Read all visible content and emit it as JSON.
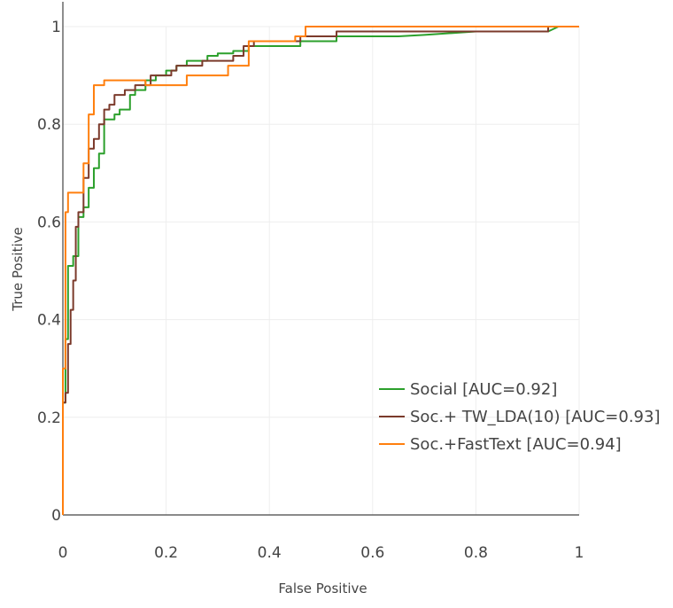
{
  "chart_data": {
    "type": "line",
    "title": "",
    "xlabel": "False Positive",
    "ylabel": "True Positive",
    "xlim": [
      0,
      1
    ],
    "ylim": [
      0,
      1
    ],
    "xticks": [
      0,
      0.2,
      0.4,
      0.6,
      0.8,
      1
    ],
    "yticks": [
      0,
      0.2,
      0.4,
      0.6,
      0.8,
      1
    ],
    "xtick_labels": [
      "0",
      "0.2",
      "0.4",
      "0.6",
      "0.8",
      "1"
    ],
    "ytick_labels": [
      "0",
      "0.2",
      "0.4",
      "0.6",
      "0.8",
      "1"
    ],
    "grid": true,
    "legend_position": "bottom-right",
    "series": [
      {
        "name": "Social [AUC=0.92]",
        "color": "#2ca02c",
        "x": [
          0,
          0,
          0.005,
          0.005,
          0.01,
          0.01,
          0.02,
          0.02,
          0.03,
          0.03,
          0.04,
          0.04,
          0.05,
          0.05,
          0.06,
          0.06,
          0.07,
          0.07,
          0.08,
          0.08,
          0.1,
          0.1,
          0.11,
          0.11,
          0.13,
          0.13,
          0.14,
          0.14,
          0.16,
          0.16,
          0.18,
          0.18,
          0.2,
          0.2,
          0.22,
          0.22,
          0.24,
          0.24,
          0.28,
          0.28,
          0.3,
          0.3,
          0.33,
          0.33,
          0.36,
          0.36,
          0.4,
          0.4,
          0.46,
          0.46,
          0.53,
          0.53,
          0.6,
          0.6,
          0.65,
          0.65,
          0.7,
          0.8,
          0.94,
          0.96,
          1
        ],
        "y": [
          0,
          0.23,
          0.23,
          0.36,
          0.36,
          0.51,
          0.51,
          0.53,
          0.53,
          0.61,
          0.61,
          0.63,
          0.63,
          0.67,
          0.67,
          0.71,
          0.71,
          0.74,
          0.74,
          0.81,
          0.81,
          0.82,
          0.82,
          0.83,
          0.83,
          0.86,
          0.86,
          0.87,
          0.87,
          0.89,
          0.89,
          0.9,
          0.9,
          0.91,
          0.91,
          0.92,
          0.92,
          0.93,
          0.93,
          0.94,
          0.94,
          0.945,
          0.945,
          0.95,
          0.95,
          0.96,
          0.96,
          0.96,
          0.96,
          0.97,
          0.97,
          0.98,
          0.98,
          0.98,
          0.98,
          0.98,
          0.983,
          0.99,
          0.99,
          1,
          1
        ]
      },
      {
        "name": "Soc.+ TW_LDA(10) [AUC=0.93]",
        "color": "#7b3a2b",
        "x": [
          0,
          0,
          0.005,
          0.005,
          0.01,
          0.01,
          0.015,
          0.015,
          0.02,
          0.02,
          0.025,
          0.025,
          0.03,
          0.03,
          0.04,
          0.04,
          0.05,
          0.05,
          0.06,
          0.06,
          0.07,
          0.07,
          0.08,
          0.08,
          0.09,
          0.09,
          0.1,
          0.1,
          0.12,
          0.12,
          0.14,
          0.14,
          0.17,
          0.17,
          0.21,
          0.21,
          0.22,
          0.22,
          0.27,
          0.27,
          0.33,
          0.33,
          0.35,
          0.35,
          0.37,
          0.37,
          0.46,
          0.46,
          0.53,
          0.53,
          0.94,
          0.94,
          1
        ],
        "y": [
          0,
          0.23,
          0.23,
          0.25,
          0.25,
          0.35,
          0.35,
          0.42,
          0.42,
          0.48,
          0.48,
          0.59,
          0.59,
          0.62,
          0.62,
          0.69,
          0.69,
          0.75,
          0.75,
          0.77,
          0.77,
          0.8,
          0.8,
          0.83,
          0.83,
          0.84,
          0.84,
          0.86,
          0.86,
          0.87,
          0.87,
          0.88,
          0.88,
          0.9,
          0.9,
          0.91,
          0.91,
          0.92,
          0.92,
          0.93,
          0.93,
          0.94,
          0.94,
          0.96,
          0.96,
          0.97,
          0.97,
          0.98,
          0.98,
          0.99,
          0.99,
          1,
          1
        ]
      },
      {
        "name": "Soc.+FastText [AUC=0.94]",
        "color": "#ff7f0e",
        "x": [
          0,
          0,
          0.005,
          0.005,
          0.01,
          0.01,
          0.02,
          0.02,
          0.04,
          0.04,
          0.05,
          0.05,
          0.06,
          0.06,
          0.08,
          0.08,
          0.14,
          0.14,
          0.16,
          0.16,
          0.24,
          0.24,
          0.32,
          0.32,
          0.36,
          0.36,
          0.45,
          0.45,
          0.47,
          0.47,
          1
        ],
        "y": [
          0,
          0.3,
          0.3,
          0.62,
          0.62,
          0.66,
          0.66,
          0.66,
          0.66,
          0.72,
          0.72,
          0.82,
          0.82,
          0.88,
          0.88,
          0.89,
          0.89,
          0.89,
          0.89,
          0.88,
          0.88,
          0.9,
          0.9,
          0.92,
          0.92,
          0.97,
          0.97,
          0.98,
          0.98,
          1,
          1
        ]
      }
    ]
  }
}
